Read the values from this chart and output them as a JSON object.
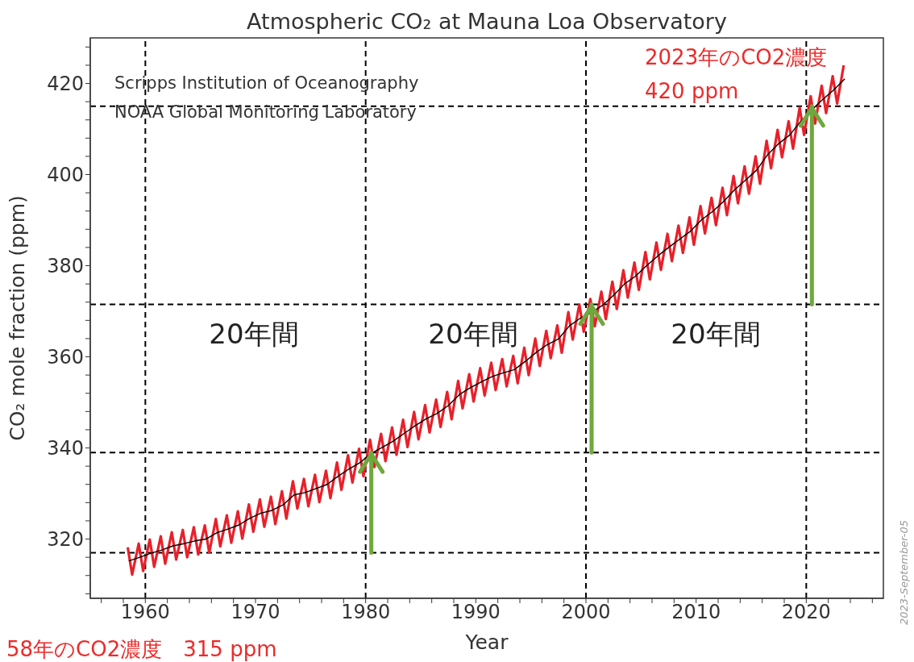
{
  "chart_data": {
    "type": "line",
    "title": "Atmospheric CO₂ at Mauna Loa Observatory",
    "xlabel": "Year",
    "ylabel": "CO₂ mole fraction (ppm)",
    "xlim": [
      1955,
      2027
    ],
    "ylim": [
      307,
      430
    ],
    "xticks": [
      {
        "value": 1956,
        "label": null
      },
      {
        "value": 1958,
        "label": null
      },
      1960,
      {
        "value": 1962,
        "label": null
      },
      {
        "value": 1964,
        "label": null
      },
      {
        "value": 1966,
        "label": null
      },
      {
        "value": 1968,
        "label": null
      },
      1970,
      {
        "value": 1972,
        "label": null
      },
      {
        "value": 1974,
        "label": null
      },
      {
        "value": 1976,
        "label": null
      },
      {
        "value": 1978,
        "label": null
      },
      1980,
      {
        "value": 1982,
        "label": null
      },
      {
        "value": 1984,
        "label": null
      },
      {
        "value": 1986,
        "label": null
      },
      {
        "value": 1988,
        "label": null
      },
      1990,
      {
        "value": 1992,
        "label": null
      },
      {
        "value": 1994,
        "label": null
      },
      {
        "value": 1996,
        "label": null
      },
      {
        "value": 1998,
        "label": null
      },
      2000,
      {
        "value": 2002,
        "label": null
      },
      {
        "value": 2004,
        "label": null
      },
      {
        "value": 2006,
        "label": null
      },
      {
        "value": 2008,
        "label": null
      },
      2010,
      {
        "value": 2012,
        "label": null
      },
      {
        "value": 2014,
        "label": null
      },
      {
        "value": 2016,
        "label": null
      },
      {
        "value": 2018,
        "label": null
      },
      2020,
      {
        "value": 2022,
        "label": null
      },
      {
        "value": 2024,
        "label": null
      },
      {
        "value": 2026,
        "label": null
      }
    ],
    "yticks": [
      {
        "value": 308,
        "label": null
      },
      {
        "value": 312,
        "label": null
      },
      {
        "value": 316,
        "label": null
      },
      320,
      {
        "value": 324,
        "label": null
      },
      {
        "value": 328,
        "label": null
      },
      {
        "value": 332,
        "label": null
      },
      {
        "value": 336,
        "label": null
      },
      340,
      {
        "value": 344,
        "label": null
      },
      {
        "value": 348,
        "label": null
      },
      {
        "value": 352,
        "label": null
      },
      {
        "value": 356,
        "label": null
      },
      360,
      {
        "value": 364,
        "label": null
      },
      {
        "value": 368,
        "label": null
      },
      {
        "value": 372,
        "label": null
      },
      {
        "value": 376,
        "label": null
      },
      380,
      {
        "value": 384,
        "label": null
      },
      {
        "value": 388,
        "label": null
      },
      {
        "value": 392,
        "label": null
      },
      {
        "value": 396,
        "label": null
      },
      400,
      {
        "value": 404,
        "label": null
      },
      {
        "value": 408,
        "label": null
      },
      {
        "value": 412,
        "label": null
      },
      {
        "value": 416,
        "label": null
      },
      420,
      {
        "value": 424,
        "label": null
      },
      {
        "value": 428,
        "label": null
      }
    ],
    "series": [
      {
        "color": "#e8202a",
        "x": [
          1958.4,
          1958.8,
          1959.4,
          1959.8,
          1960.4,
          1960.8,
          1961.4,
          1961.8,
          1962.4,
          1962.8,
          1963.4,
          1963.8,
          1964.4,
          1964.8,
          1965.4,
          1965.8,
          1966.4,
          1966.8,
          1967.4,
          1967.8,
          1968.4,
          1968.8,
          1969.4,
          1969.8,
          1970.4,
          1970.8,
          1971.4,
          1971.8,
          1972.4,
          1972.8,
          1973.4,
          1973.8,
          1974.4,
          1974.8,
          1975.4,
          1975.8,
          1976.4,
          1976.8,
          1977.4,
          1977.8,
          1978.4,
          1978.8,
          1979.4,
          1979.8,
          1980.4,
          1980.8,
          1981.4,
          1981.8,
          1982.4,
          1982.8,
          1983.4,
          1983.8,
          1984.4,
          1984.8,
          1985.4,
          1985.8,
          1986.4,
          1986.8,
          1987.4,
          1987.8,
          1988.4,
          1988.8,
          1989.4,
          1989.8,
          1990.4,
          1990.8,
          1991.4,
          1991.8,
          1992.4,
          1992.8,
          1993.4,
          1993.8,
          1994.4,
          1994.8,
          1995.4,
          1995.8,
          1996.4,
          1996.8,
          1997.4,
          1997.8,
          1998.4,
          1998.8,
          1999.4,
          1999.8,
          2000.4,
          2000.8,
          2001.4,
          2001.8,
          2002.4,
          2002.8,
          2003.4,
          2003.8,
          2004.4,
          2004.8,
          2005.4,
          2005.8,
          2006.4,
          2006.8,
          2007.4,
          2007.8,
          2008.4,
          2008.8,
          2009.4,
          2009.8,
          2010.4,
          2010.8,
          2011.4,
          2011.8,
          2012.4,
          2012.8,
          2013.4,
          2013.8,
          2014.4,
          2014.8,
          2015.4,
          2015.8,
          2016.4,
          2016.8,
          2017.4,
          2017.8,
          2018.4,
          2018.8,
          2019.4,
          2019.8,
          2020.4,
          2020.8,
          2021.4,
          2021.8,
          2022.4,
          2022.8,
          2023.4
        ],
        "values": [
          318.2,
          312.2,
          319.0,
          313.0,
          319.9,
          313.9,
          320.6,
          314.6,
          321.5,
          315.5,
          322.0,
          316.0,
          322.6,
          316.6,
          323.0,
          317.0,
          324.4,
          318.4,
          325.2,
          319.2,
          326.1,
          320.1,
          327.6,
          321.6,
          328.7,
          322.7,
          329.3,
          323.3,
          330.5,
          324.5,
          332.7,
          326.7,
          333.2,
          327.2,
          334.1,
          328.1,
          335.0,
          329.0,
          336.8,
          330.8,
          338.4,
          332.4,
          339.8,
          333.8,
          341.8,
          335.8,
          343.1,
          337.1,
          344.5,
          338.5,
          346.2,
          340.2,
          347.9,
          341.9,
          349.4,
          343.4,
          350.6,
          344.6,
          352.3,
          346.3,
          354.7,
          348.7,
          356.2,
          350.2,
          357.5,
          351.5,
          358.7,
          352.7,
          359.5,
          353.5,
          360.2,
          354.2,
          362.0,
          356.0,
          364.0,
          358.0,
          365.7,
          359.7,
          366.9,
          360.9,
          369.8,
          363.8,
          371.5,
          365.5,
          372.7,
          366.7,
          374.3,
          368.3,
          376.5,
          370.5,
          379.0,
          373.0,
          380.7,
          374.7,
          383.0,
          377.0,
          385.1,
          379.1,
          387.0,
          381.0,
          388.8,
          382.8,
          390.6,
          384.6,
          393.1,
          387.1,
          394.9,
          388.9,
          397.1,
          391.1,
          399.7,
          393.7,
          401.8,
          395.8,
          404.0,
          398.0,
          407.4,
          401.4,
          409.8,
          403.8,
          411.7,
          405.7,
          414.7,
          408.7,
          417.2,
          411.2,
          419.5,
          413.5,
          421.6,
          415.6,
          424.0
        ]
      },
      {
        "color": "#000000",
        "x": [
          1958.5,
          1959.5,
          1960.5,
          1961.5,
          1962.5,
          1963.5,
          1964.5,
          1965.5,
          1966.5,
          1967.5,
          1968.5,
          1969.5,
          1970.5,
          1971.5,
          1972.5,
          1973.5,
          1974.5,
          1975.5,
          1976.5,
          1977.5,
          1978.5,
          1979.5,
          1980.5,
          1981.5,
          1982.5,
          1983.5,
          1984.5,
          1985.5,
          1986.5,
          1987.5,
          1988.5,
          1989.5,
          1990.5,
          1991.5,
          1992.5,
          1993.5,
          1994.5,
          1995.5,
          1996.5,
          1997.5,
          1998.5,
          1999.5,
          2000.5,
          2001.5,
          2002.5,
          2003.5,
          2004.5,
          2005.5,
          2006.5,
          2007.5,
          2008.5,
          2009.5,
          2010.5,
          2011.5,
          2012.5,
          2013.5,
          2014.5,
          2015.5,
          2016.5,
          2017.5,
          2018.5,
          2019.5,
          2020.5,
          2021.5,
          2022.5,
          2023.5
        ],
        "values": [
          315.2,
          316.0,
          316.9,
          317.6,
          318.5,
          319.0,
          319.6,
          320.0,
          321.4,
          322.2,
          323.1,
          324.6,
          325.7,
          326.3,
          327.5,
          329.7,
          330.2,
          331.1,
          332.0,
          333.8,
          335.4,
          336.8,
          338.8,
          340.1,
          341.5,
          343.2,
          344.9,
          346.4,
          347.6,
          349.3,
          351.7,
          353.2,
          354.5,
          355.7,
          356.5,
          357.2,
          359.0,
          361.0,
          362.7,
          363.9,
          366.8,
          368.5,
          369.7,
          371.3,
          373.5,
          376.0,
          377.7,
          380.0,
          382.1,
          384.0,
          385.8,
          387.6,
          390.1,
          391.9,
          394.1,
          396.7,
          398.8,
          401.0,
          404.4,
          406.8,
          408.7,
          411.7,
          414.2,
          416.5,
          418.6,
          421.0
        ]
      }
    ],
    "ref_lines": [
      {
        "axis": "y",
        "value": 317,
        "color": "#000000",
        "line_style": "dashed"
      },
      {
        "axis": "y",
        "value": 339,
        "color": "#000000",
        "line_style": "dashed"
      },
      {
        "axis": "y",
        "value": 371.5,
        "color": "#000000",
        "line_style": "dashed"
      },
      {
        "axis": "y",
        "value": 415,
        "color": "#000000",
        "line_style": "dashed"
      },
      {
        "axis": "x",
        "value": 1960,
        "color": "#000000",
        "line_style": "dashed"
      },
      {
        "axis": "x",
        "value": 1980,
        "color": "#000000",
        "line_style": "dashed"
      },
      {
        "axis": "x",
        "value": 2000,
        "color": "#000000",
        "line_style": "dashed"
      },
      {
        "axis": "x",
        "value": 2020,
        "color": "#000000",
        "line_style": "dashed"
      }
    ],
    "annotations": [
      "20年間",
      "20年間",
      "20年間",
      "Scripps Institution of Oceanography",
      "NOAA Global Monitoring Laboratory",
      "2023年のCO2濃度",
      "420 ppm",
      "58年のCO2濃度　315 ppm",
      "2023-September-05"
    ]
  }
}
